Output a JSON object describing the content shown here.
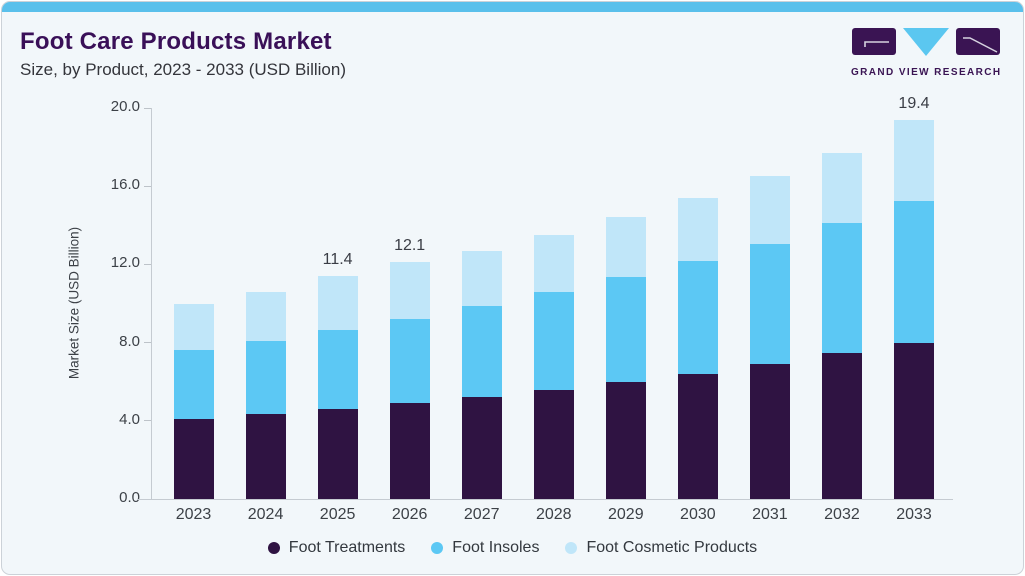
{
  "theme": {
    "accent_blue": "#5ac0eb",
    "title_purple": "#3a1058",
    "card_background": "#f2f7fa"
  },
  "header": {
    "title": "Foot Care Products Market",
    "subtitle": "Size, by Product, 2023 - 2033 (USD Billion)"
  },
  "logo": {
    "text": "GRAND VIEW RESEARCH",
    "purple": "#3a1453",
    "blue": "#5bc7f0"
  },
  "chart_data": {
    "type": "bar",
    "stacked": true,
    "title": "Foot Care Products Market Size, by Product, 2023 - 2033 (USD Billion)",
    "categories": [
      "2023",
      "2024",
      "2025",
      "2026",
      "2027",
      "2028",
      "2029",
      "2030",
      "2031",
      "2032",
      "2033"
    ],
    "series": [
      {
        "name": "Foot Treatments",
        "color": "#2f1342",
        "values": [
          4.1,
          4.35,
          4.6,
          4.9,
          5.2,
          5.6,
          6.0,
          6.4,
          6.9,
          7.45,
          8.0
        ]
      },
      {
        "name": "Foot Insoles",
        "color": "#5cc8f4",
        "values": [
          3.5,
          3.75,
          4.05,
          4.3,
          4.65,
          5.0,
          5.35,
          5.75,
          6.15,
          6.65,
          7.25
        ]
      },
      {
        "name": "Foot Cosmetic Products",
        "color": "#c0e6f9",
        "values": [
          2.4,
          2.5,
          2.75,
          2.9,
          2.85,
          2.9,
          3.05,
          3.25,
          3.45,
          3.6,
          4.15
        ]
      }
    ],
    "totals": [
      10.0,
      10.6,
      11.4,
      12.1,
      12.7,
      13.5,
      14.4,
      15.4,
      16.5,
      17.7,
      19.4
    ],
    "bar_labels": [
      "",
      "",
      "11.4",
      "12.1",
      "",
      "",
      "",
      "",
      "",
      "",
      "19.4"
    ],
    "ylabel": "Market Size (USD Billion)",
    "yticks": [
      "0.0",
      "4.0",
      "8.0",
      "12.0",
      "16.0",
      "20.0"
    ],
    "ylim": [
      0,
      20
    ],
    "grid": false,
    "legend_position": "bottom"
  }
}
